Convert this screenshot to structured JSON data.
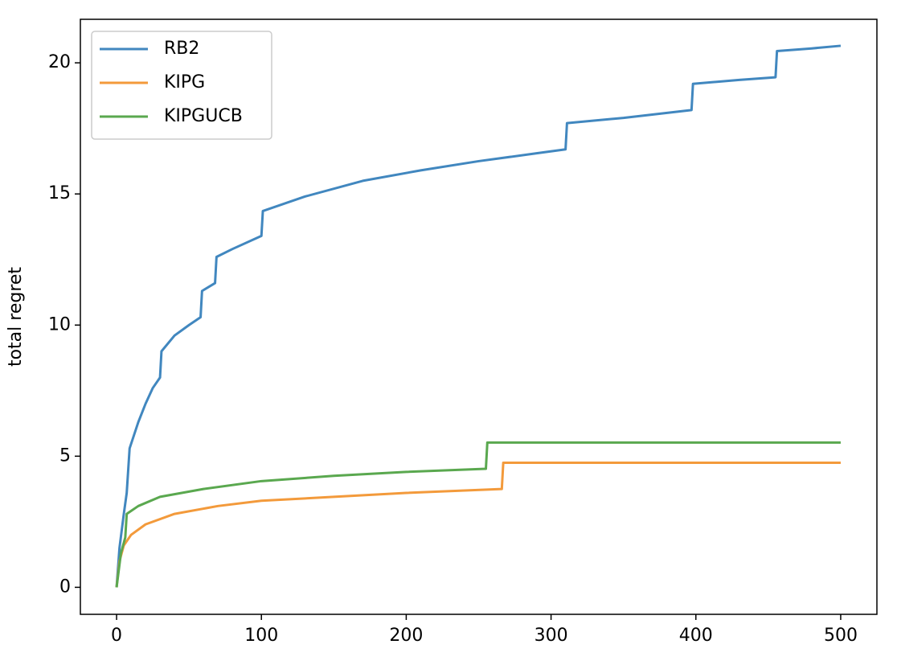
{
  "chart_data": {
    "type": "line",
    "y_label": "total regret",
    "xlim": [
      -25,
      525
    ],
    "ylim": [
      -1.03,
      21.66
    ],
    "xticks": [
      0,
      100,
      200,
      300,
      400,
      500
    ],
    "yticks": [
      0,
      5,
      10,
      15,
      20
    ],
    "legend": "upper left",
    "series": [
      {
        "name": "RB2",
        "color": "#4187bf",
        "x": [
          0,
          2,
          5,
          7,
          9,
          15,
          20,
          25,
          30,
          31,
          40,
          50,
          58,
          59,
          68,
          69,
          80,
          100,
          101,
          130,
          170,
          210,
          250,
          290,
          310,
          311,
          350,
          397,
          398,
          430,
          455,
          456,
          480,
          500
        ],
        "values": [
          0,
          1.5,
          2.8,
          3.6,
          5.3,
          6.3,
          7.0,
          7.6,
          8.0,
          9.0,
          9.6,
          10.0,
          10.3,
          11.3,
          11.6,
          12.6,
          12.9,
          13.4,
          14.35,
          14.9,
          15.5,
          15.9,
          16.25,
          16.55,
          16.7,
          17.7,
          17.9,
          18.2,
          19.2,
          19.35,
          19.45,
          20.45,
          20.55,
          20.65
        ]
      },
      {
        "name": "KIPG",
        "color": "#f39a3b",
        "x": [
          0,
          2,
          5,
          10,
          20,
          40,
          70,
          100,
          150,
          200,
          266,
          267,
          500
        ],
        "values": [
          0,
          1.0,
          1.6,
          2.0,
          2.4,
          2.8,
          3.1,
          3.3,
          3.45,
          3.6,
          3.75,
          4.75,
          4.75
        ]
      },
      {
        "name": "KIPGUCB",
        "color": "#5aa84f",
        "x": [
          0,
          3,
          6,
          7,
          15,
          30,
          60,
          100,
          150,
          200,
          255,
          256,
          500
        ],
        "values": [
          0,
          1.3,
          1.9,
          2.8,
          3.1,
          3.45,
          3.75,
          4.05,
          4.25,
          4.4,
          4.52,
          5.52,
          5.52
        ]
      }
    ]
  }
}
